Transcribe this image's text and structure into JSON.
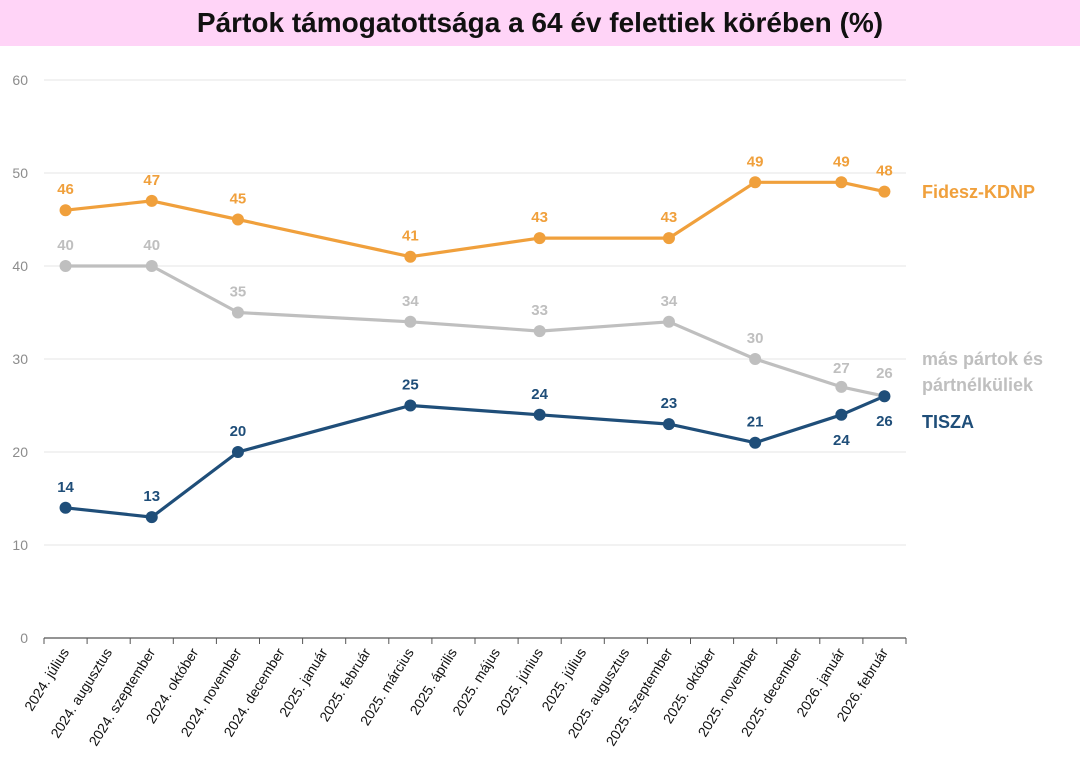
{
  "chart_data": {
    "type": "line",
    "title": "Pártok támogatottsága a 64 év felettiek körében (%)",
    "xlabel": "",
    "ylabel": "",
    "ylim": [
      0,
      60
    ],
    "yticks": [
      0,
      10,
      20,
      30,
      40,
      50,
      60
    ],
    "grid": true,
    "legend": "right",
    "categories": [
      "2024. július",
      "2024. augusztus",
      "2024. szeptember",
      "2024. október",
      "2024. november",
      "2024. december",
      "2025. január",
      "2025. február",
      "2025. március",
      "2025. április",
      "2025. május",
      "2025. június",
      "2025. július",
      "2025. augusztus",
      "2025. szeptember",
      "2025. október",
      "2025. november",
      "2025. december",
      "2026. január",
      "2026. február"
    ],
    "series": [
      {
        "name": "Fidesz-KDNP",
        "label_lines": [
          "Fidesz-KDNP"
        ],
        "color": "#f0a03c",
        "points": [
          [
            0,
            46
          ],
          [
            2,
            47
          ],
          [
            4,
            45
          ],
          [
            8,
            41
          ],
          [
            11,
            43
          ],
          [
            14,
            43
          ],
          [
            16,
            49
          ],
          [
            18,
            49
          ],
          [
            19,
            48
          ]
        ]
      },
      {
        "name": "más pártok és pártnélküliek",
        "label_lines": [
          "más pártok és",
          "pártnélküliek"
        ],
        "color": "#bfbfbf",
        "points": [
          [
            0,
            40
          ],
          [
            2,
            40
          ],
          [
            4,
            35
          ],
          [
            8,
            34
          ],
          [
            11,
            33
          ],
          [
            14,
            34
          ],
          [
            16,
            30
          ],
          [
            18,
            27
          ],
          [
            19,
            26
          ]
        ]
      },
      {
        "name": "TISZA",
        "label_lines": [
          "TISZA"
        ],
        "color": "#1f4e79",
        "points": [
          [
            0,
            14
          ],
          [
            2,
            13
          ],
          [
            4,
            20
          ],
          [
            8,
            25
          ],
          [
            11,
            24
          ],
          [
            14,
            23
          ],
          [
            16,
            21
          ],
          [
            18,
            24
          ],
          [
            19,
            26
          ]
        ]
      }
    ]
  }
}
